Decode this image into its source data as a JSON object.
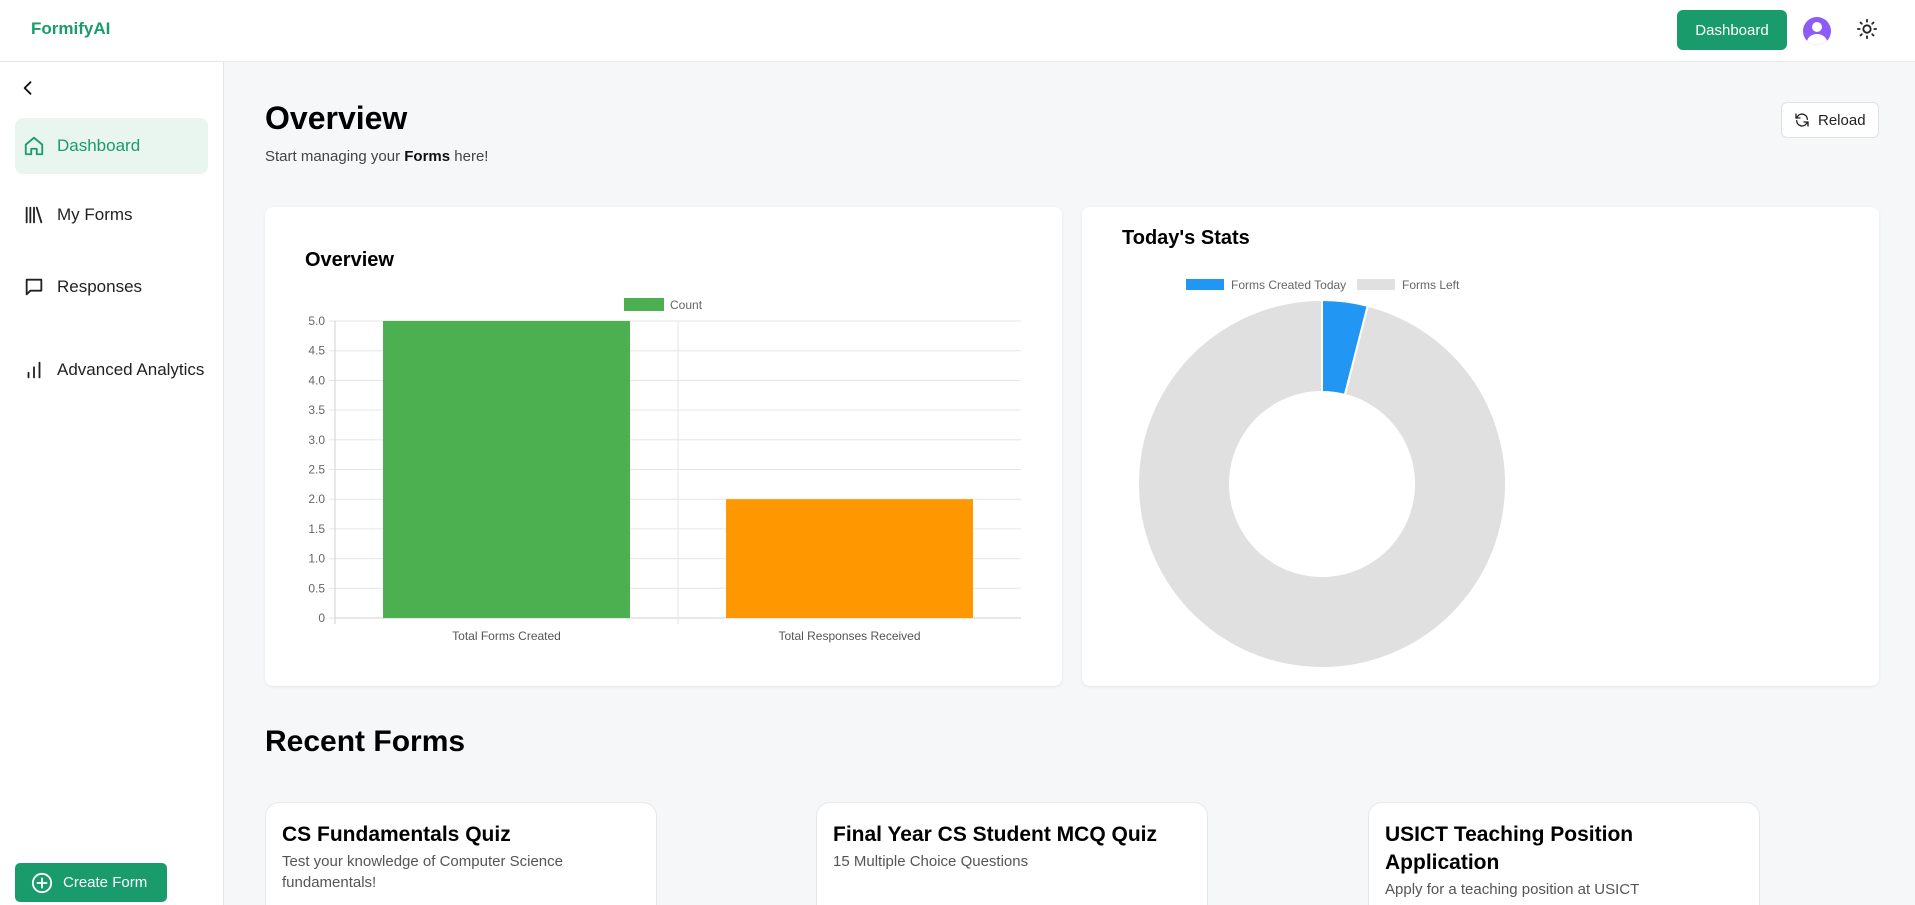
{
  "app": {
    "brand": "FormifyAI"
  },
  "header": {
    "dashboard_button": "Dashboard"
  },
  "sidebar": {
    "items": [
      {
        "label": "Dashboard",
        "icon": "home-icon",
        "active": true
      },
      {
        "label": "My Forms",
        "icon": "library-icon",
        "active": false
      },
      {
        "label": "Responses",
        "icon": "message-square-icon",
        "active": false
      },
      {
        "label": "Advanced Analytics",
        "icon": "bar-chart-icon",
        "active": false
      }
    ],
    "create_button": "Create Form"
  },
  "main": {
    "title": "Overview",
    "subtitle_prefix": "Start managing your ",
    "subtitle_bold": "Forms",
    "subtitle_suffix": " here!",
    "reload_label": "Reload",
    "recent_title": "Recent Forms",
    "recent_forms": [
      {
        "title": "CS Fundamentals Quiz",
        "description": "Test your knowledge of Computer Science fundamentals!"
      },
      {
        "title": "Final Year CS Student MCQ Quiz",
        "description": "15 Multiple Choice Questions"
      },
      {
        "title": "USICT Teaching Position Application",
        "description": "Apply for a teaching position at USICT"
      }
    ]
  },
  "cards": {
    "bar_title": "Overview",
    "pie_title": "Today's Stats"
  },
  "colors": {
    "accent": "#1a9b6c",
    "bar_created": "#4caf50",
    "bar_responses": "#ff9800",
    "pie_today": "#2196f3",
    "pie_left": "#e0e0e0"
  },
  "chart_data": [
    {
      "type": "bar",
      "title": "Overview",
      "categories": [
        "Total Forms Created",
        "Total Responses Received"
      ],
      "series": [
        {
          "name": "Count",
          "values": [
            5,
            2
          ]
        }
      ],
      "ylim": [
        0,
        5
      ],
      "yticks": [
        "0",
        "0.5",
        "1.0",
        "1.5",
        "2.0",
        "2.5",
        "3.0",
        "3.5",
        "4.0",
        "4.5",
        "5.0"
      ],
      "legend": "top-center"
    },
    {
      "type": "pie",
      "title": "Today's Stats",
      "labels": [
        "Forms Created Today",
        "Forms Left"
      ],
      "values": [
        1,
        24
      ],
      "donut": true,
      "legend": "top-left"
    }
  ]
}
